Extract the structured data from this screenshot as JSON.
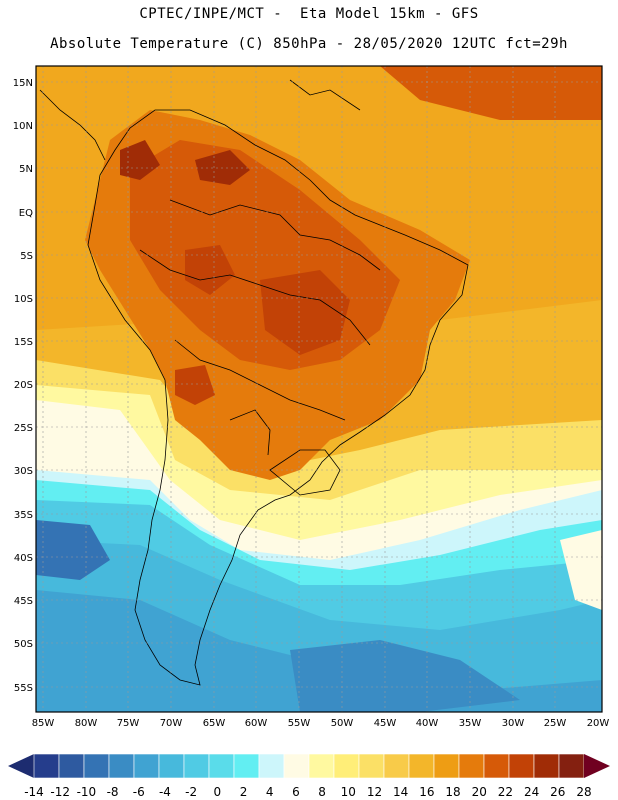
{
  "header": {
    "line1": "CPTEC/INPE/MCT -  Eta Model 15km - GFS",
    "line2": "Absolute Temperature (C) 850hPa - 28/05/2020 12UTC fct=29h"
  },
  "map": {
    "lat_labels": [
      "15N",
      "10N",
      "5N",
      "EQ",
      "5S",
      "10S",
      "15S",
      "20S",
      "25S",
      "30S",
      "35S",
      "40S",
      "45S",
      "50S",
      "55S"
    ],
    "lon_labels": [
      "85W",
      "80W",
      "75W",
      "70W",
      "65W",
      "60W",
      "55W",
      "50W",
      "45W",
      "40W",
      "35W",
      "30W",
      "25W",
      "20W"
    ],
    "grid_lines": true
  },
  "colorbar": {
    "labels": [
      "-14",
      "-12",
      "-10",
      "-8",
      "-6",
      "-4",
      "-2",
      "0",
      "2",
      "4",
      "6",
      "8",
      "10",
      "12",
      "14",
      "16",
      "18",
      "20",
      "22",
      "24",
      "26",
      "28"
    ],
    "colors": [
      "#253d8c",
      "#2e5aa0",
      "#3473b4",
      "#3a8cc4",
      "#40a3d2",
      "#47b9dc",
      "#50cbe4",
      "#5adcea",
      "#62eef2",
      "#cdf6fb",
      "#fffbe4",
      "#fff9a0",
      "#ffee78",
      "#fbe066",
      "#f8cb49",
      "#f3b62a",
      "#ee9d14",
      "#e57b0c",
      "#d65a08",
      "#c24206",
      "#a02c06",
      "#842010"
    ],
    "low_arrow_color": "#1d2c70",
    "high_arrow_color": "#700020"
  }
}
